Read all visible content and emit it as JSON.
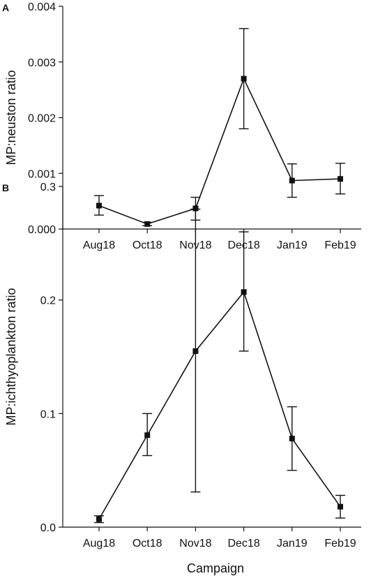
{
  "chart_data": [
    {
      "panel_label": "A",
      "type": "line",
      "categories": [
        "Aug18",
        "Oct18",
        "Nov18",
        "Dec18",
        "Jan19",
        "Feb19"
      ],
      "series": [
        {
          "values": [
            0.00042,
            9e-05,
            0.00037,
            0.0027,
            0.00087,
            0.0009
          ],
          "error_low": [
            0.00025,
            6e-05,
            0.00016,
            0.0018,
            0.00057,
            0.00063
          ],
          "error_high": [
            0.0006,
            0.00012,
            0.00057,
            0.0036,
            0.00117,
            0.00118
          ]
        }
      ],
      "xlabel": "",
      "ylabel": "MP:neuston ratio",
      "ylim": [
        0,
        0.004
      ],
      "yticks": [
        "0.000",
        "0.001",
        "0.002",
        "0.003",
        "0.004"
      ],
      "grid": false,
      "legend": "none"
    },
    {
      "panel_label": "B",
      "type": "line",
      "categories": [
        "Aug18",
        "Oct18",
        "Nov18",
        "Dec18",
        "Jan19",
        "Feb19"
      ],
      "series": [
        {
          "values": [
            0.007,
            0.081,
            0.155,
            0.207,
            0.078,
            0.018
          ],
          "error_low": [
            0.004,
            0.063,
            0.031,
            0.155,
            0.05,
            0.008
          ],
          "error_high": [
            0.01,
            0.1,
            0.28,
            0.26,
            0.106,
            0.028
          ]
        }
      ],
      "xlabel": "Campaign",
      "ylabel": "MP:ichthyoplankton ratio",
      "ylim": [
        0,
        0.3
      ],
      "yticks": [
        "0.0",
        "0.1",
        "0.2",
        "0.3"
      ],
      "grid": false,
      "legend": "none"
    }
  ],
  "colors": {
    "line": "#111111",
    "marker": "#111111"
  }
}
